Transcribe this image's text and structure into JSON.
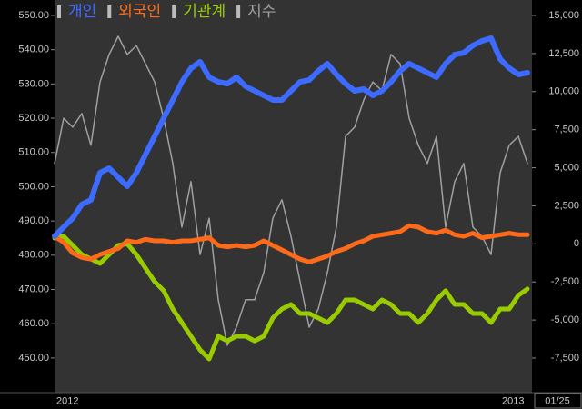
{
  "chart_data": {
    "type": "line",
    "categories": [
      "2012",
      null,
      null,
      null,
      null,
      null,
      null,
      null,
      null,
      null,
      null,
      null,
      null,
      null,
      null,
      null,
      null,
      null,
      null,
      null,
      null,
      null,
      null,
      null,
      null,
      null,
      null,
      null,
      null,
      null,
      null,
      null,
      null,
      null,
      null,
      null,
      null,
      null,
      null,
      null,
      null,
      null,
      null,
      null,
      null,
      null,
      null,
      null,
      null,
      "2013",
      null,
      null,
      null
    ],
    "last_date": "01/25",
    "ylim": [
      439.9,
      554.5
    ],
    "yticks": [
      {
        "value": 550,
        "label": "550.00"
      },
      {
        "value": 540,
        "label": "540.00"
      },
      {
        "value": 530,
        "label": "530.00"
      },
      {
        "value": 520,
        "label": "520.00"
      },
      {
        "value": 510,
        "label": "510.00"
      },
      {
        "value": 500,
        "label": "500.00"
      },
      {
        "value": 490,
        "label": "490.00"
      },
      {
        "value": 480,
        "label": "480.00"
      },
      {
        "value": 470,
        "label": "470.00"
      },
      {
        "value": 460,
        "label": "460.00"
      },
      {
        "value": 450,
        "label": "450.00"
      }
    ],
    "y2lim": [
      -9768,
      16015
    ],
    "y2ticks": [
      {
        "value": 15000,
        "label": "15,000"
      },
      {
        "value": 12500,
        "label": "12,500"
      },
      {
        "value": 10000,
        "label": "10,000"
      },
      {
        "value": 7500,
        "label": "7,500"
      },
      {
        "value": 5000,
        "label": "5,000"
      },
      {
        "value": 2500,
        "label": "2,500"
      },
      0,
      {
        "value": -2500,
        "label": "-2,500"
      },
      {
        "value": -5000,
        "label": "-5,000"
      },
      {
        "value": -7500,
        "label": "-7,500"
      }
    ],
    "series": [
      {
        "name": "개인",
        "color": "#3d6bff",
        "axis": "y2",
        "values": [
          500,
          1100,
          1690,
          2590,
          2890,
          4675,
          4975,
          4375,
          3780,
          4675,
          5870,
          7060,
          8260,
          9450,
          10640,
          11540,
          11960,
          10940,
          10640,
          10520,
          10940,
          10345,
          10045,
          9750,
          9450,
          9450,
          10045,
          10640,
          10760,
          11360,
          11840,
          11120,
          10520,
          10045,
          10165,
          9750,
          10045,
          10640,
          11360,
          11840,
          11540,
          11240,
          10940,
          11840,
          12430,
          12550,
          13030,
          13330,
          13510,
          12135,
          11540,
          11120,
          11240
        ]
      },
      {
        "name": "외국인",
        "color": "#ff6a1a",
        "axis": "y2",
        "values": [
          500,
          100,
          -600,
          -900,
          -1000,
          -700,
          -500,
          -300,
          200,
          100,
          300,
          200,
          200,
          100,
          200,
          200,
          300,
          400,
          -100,
          -200,
          -100,
          -200,
          -100,
          200,
          -100,
          -400,
          -700,
          -1000,
          -1200,
          -1000,
          -800,
          -500,
          -300,
          0,
          200,
          500,
          600,
          700,
          800,
          1200,
          1100,
          800,
          700,
          900,
          600,
          500,
          700,
          400,
          500,
          600,
          700,
          600,
          600
        ]
      },
      {
        "name": "기관계",
        "color": "#99cc00",
        "axis": "y2",
        "values": [
          380,
          500,
          -100,
          -700,
          -990,
          -1290,
          -700,
          -100,
          0,
          -700,
          -1590,
          -2480,
          -3080,
          -4280,
          -5170,
          -6070,
          -6960,
          -7560,
          -6070,
          -6370,
          -6070,
          -6070,
          -6370,
          -6070,
          -4870,
          -4280,
          -3980,
          -4575,
          -4575,
          -4870,
          -5170,
          -4575,
          -3680,
          -3680,
          -3980,
          -4280,
          -3680,
          -3980,
          -4575,
          -4575,
          -5170,
          -4575,
          -3680,
          -3080,
          -3980,
          -3980,
          -4575,
          -4575,
          -5170,
          -4280,
          -4280,
          -3380,
          -2960
        ]
      },
      {
        "name": "지수",
        "color": "#a0a0a0",
        "values": [
          506.8,
          520.0,
          517.4,
          521.4,
          512.1,
          530.6,
          538.6,
          543.9,
          538.6,
          541.2,
          535.9,
          530.6,
          520.0,
          506.8,
          488.2,
          501.5,
          480.2,
          490.8,
          467.0,
          453.7,
          459.0,
          467.0,
          467.0,
          474.9,
          490.8,
          496.2,
          485.5,
          472.3,
          459.0,
          464.3,
          474.9,
          488.2,
          514.7,
          517.4,
          525.3,
          530.6,
          528.0,
          538.6,
          535.9,
          520.0,
          512.1,
          506.8,
          514.7,
          488.2,
          501.5,
          506.8,
          488.2,
          485.5,
          480.2,
          504.1,
          512.1,
          514.7,
          506.8
        ]
      }
    ]
  }
}
